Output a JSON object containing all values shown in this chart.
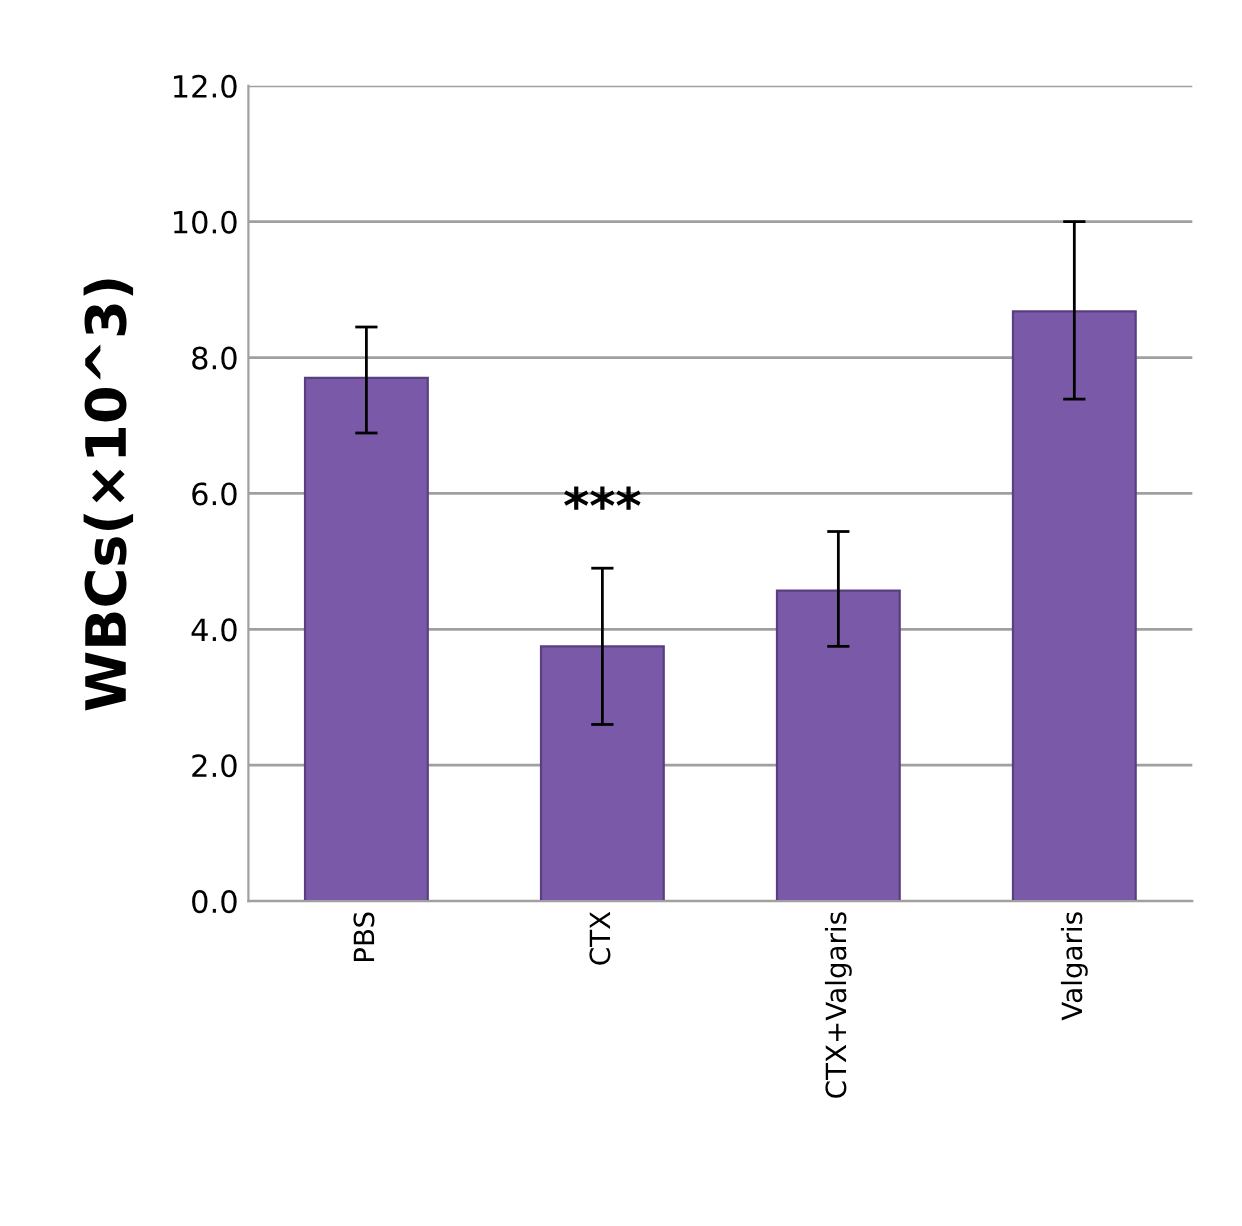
{
  "chart_data": {
    "type": "bar",
    "ylabel": "WBCs(×10^3)",
    "categories": [
      "PBS",
      "CTX",
      "CTX+Valgaris",
      "Valgaris"
    ],
    "values": [
      7.7,
      3.75,
      4.57,
      8.68
    ],
    "errors": [
      [
        6.89,
        8.45
      ],
      [
        2.6,
        4.9
      ],
      [
        3.75,
        5.44
      ],
      [
        7.39,
        10.0
      ]
    ],
    "color": "#7a5aa8",
    "ylim": [
      0,
      12
    ],
    "yticks": [
      {
        "value": 0,
        "label": "0.0"
      },
      {
        "value": 2,
        "label": "2.0"
      },
      {
        "value": 4,
        "label": "4.0"
      },
      {
        "value": 6,
        "label": "6.0"
      },
      {
        "value": 8,
        "label": "8.0"
      },
      {
        "value": 10,
        "label": "10.0"
      },
      {
        "value": 12,
        "label": "12.0"
      }
    ],
    "grid": "y",
    "annotations": [
      "***"
    ]
  }
}
